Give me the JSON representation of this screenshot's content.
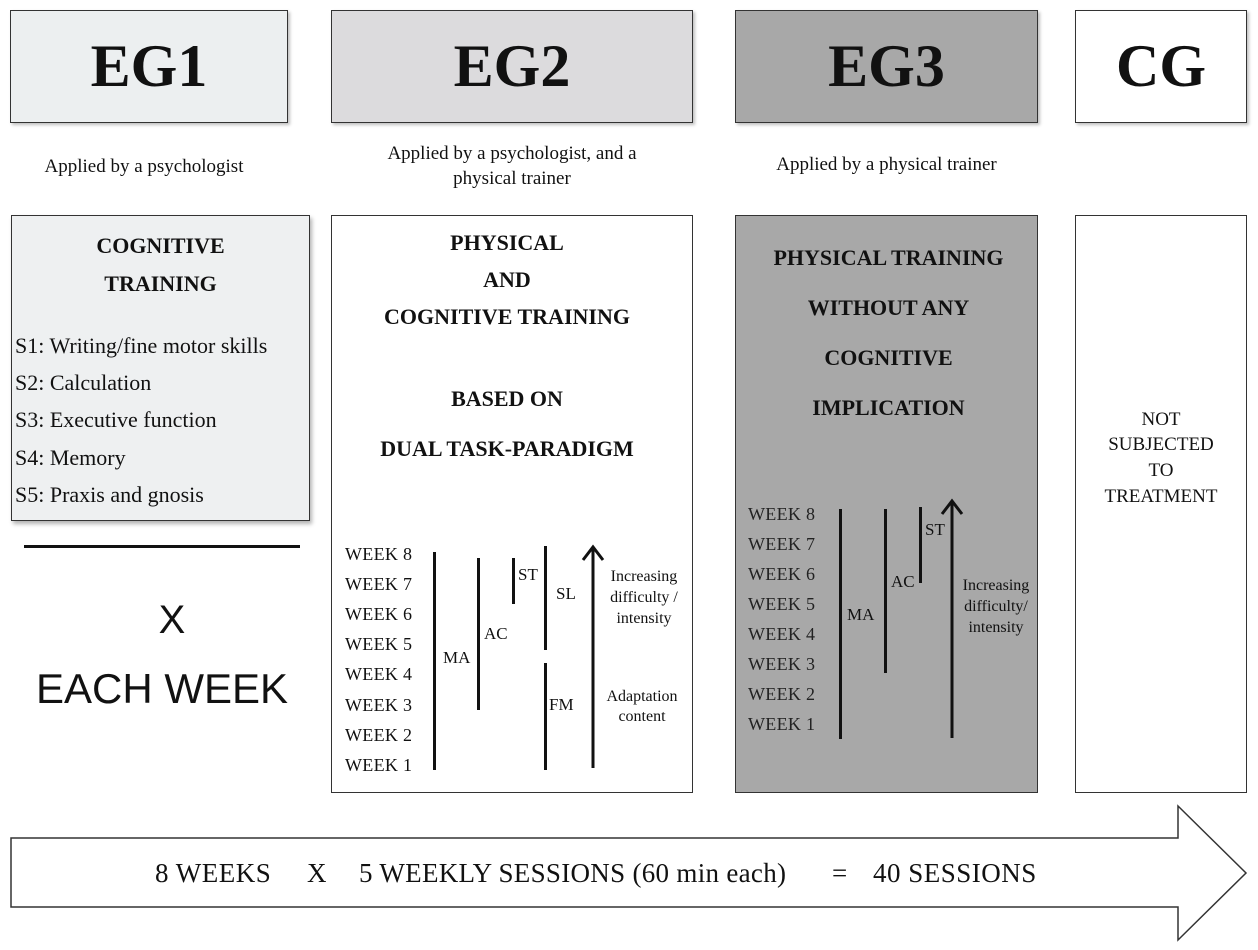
{
  "groups": {
    "eg1": {
      "label": "EG1",
      "color": "#eceff0",
      "applied_by": "Applied by a psychologist"
    },
    "eg2": {
      "label": "EG2",
      "color": "#dcdbdd",
      "applied_by_line1": "Applied by a psychologist, and a",
      "applied_by_line2": "physical trainer"
    },
    "eg3": {
      "label": "EG3",
      "color": "#a8a8a8",
      "applied_by": "Applied by a physical trainer"
    },
    "cg": {
      "label": "CG",
      "color": "#ffffff"
    }
  },
  "eg1_box": {
    "title_line1": "COGNITIVE",
    "title_line2": "TRAINING",
    "sessions": [
      "S1: Writing/fine motor skills",
      "S2: Calculation",
      "S3: Executive function",
      "S4: Memory",
      "S5: Praxis and gnosis"
    ],
    "multiplier": "X",
    "frequency": "EACH WEEK"
  },
  "eg2_box": {
    "title_line1": "PHYSICAL",
    "title_line2": "AND",
    "title_line3": "COGNITIVE TRAINING",
    "title_line4": "BASED ON",
    "title_line5": "DUAL TASK-PARADIGM",
    "weeks": [
      "WEEK 8",
      "WEEK 7",
      "WEEK 6",
      "WEEK 5",
      "WEEK 4",
      "WEEK 3",
      "WEEK 2",
      "WEEK 1"
    ],
    "labels": {
      "ma": "MA",
      "ac": "AC",
      "st": "ST",
      "sl": "SL",
      "fm": "FM"
    },
    "note_top_line1": "Increasing",
    "note_top_line2": "difficulty /",
    "note_top_line3": "intensity",
    "note_bottom_line1": "Adaptation",
    "note_bottom_line2": "content"
  },
  "eg3_box": {
    "title_line1": "PHYSICAL TRAINING",
    "title_line2": "WITHOUT ANY",
    "title_line3": "COGNITIVE",
    "title_line4": "IMPLICATION",
    "weeks": [
      "WEEK 8",
      "WEEK 7",
      "WEEK 6",
      "WEEK 5",
      "WEEK 4",
      "WEEK 3",
      "WEEK 2",
      "WEEK 1"
    ],
    "labels": {
      "ma": "MA",
      "ac": "AC",
      "st": "ST"
    },
    "note_line1": "Increasing",
    "note_line2": "difficulty/",
    "note_line3": "intensity"
  },
  "cg_box": {
    "line1": "NOT",
    "line2": "SUBJECTED",
    "line3": "TO",
    "line4": "TREATMENT"
  },
  "footer": {
    "weeks": "8 WEEKS",
    "times": "X",
    "sessions": "5 WEEKLY SESSIONS (60 min each)",
    "equals": "=",
    "total": "40 SESSIONS"
  }
}
